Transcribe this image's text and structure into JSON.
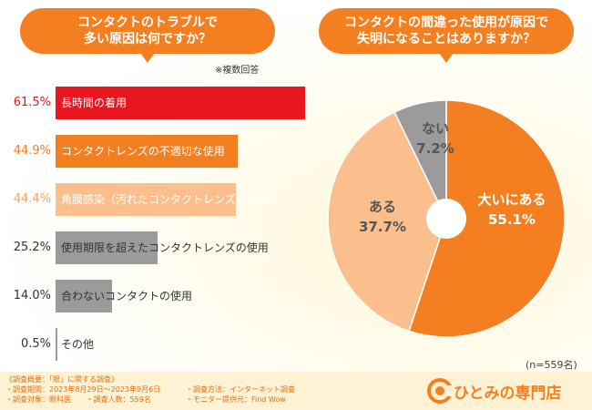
{
  "left_chart": {
    "question": "コンタクトのトラブルで\n多い原因は何ですか？",
    "note": "※複数回答",
    "chart_data": {
      "type": "bar",
      "categories": [
        "長時間の着用",
        "コンタクトレンズの不適切な使用",
        "角膜感染（汚れたコンタクトレンズの使用）",
        "使用期限を超えたコンタクトレンズの使用",
        "合わないコンタクトの使用",
        "その他"
      ],
      "values": [
        61.5,
        44.9,
        44.4,
        25.2,
        14.0,
        0.5
      ],
      "value_labels": [
        "61.5%",
        "44.9%",
        "44.4%",
        "25.2%",
        "14.0%",
        "0.5%"
      ],
      "colors": [
        "#e8161e",
        "#f47f20",
        "#fbbf8e",
        "#9b9b9b",
        "#9b9b9b",
        "#9b9b9b"
      ],
      "label_colors": [
        "#e8161e",
        "#f47f20",
        "#f7a460",
        "#333333",
        "#333333",
        "#333333"
      ],
      "xlim": [
        0,
        100
      ]
    }
  },
  "right_chart": {
    "question": "コンタクトの間違った使用が原因で\n失明になることはありますか？",
    "chart_data": {
      "type": "pie",
      "labels": [
        "大いにある",
        "ある",
        "ない"
      ],
      "values": [
        55.1,
        37.7,
        7.2
      ],
      "value_labels": [
        "55.1%",
        "37.7%",
        "7.2%"
      ],
      "colors": [
        "#f47f20",
        "#fbbf8e",
        "#9b9b9b"
      ]
    },
    "n_label": "(n=559名)"
  },
  "footer": {
    "line1": "《調査概要：「眼」に関する調査》",
    "line2": "・調査期間：2023年8月29日～2023年9月6日",
    "line3a": "・調査対象：眼科医",
    "line3b": "・調査人数：559名",
    "line4": "・調査方法：インターネット調査",
    "line5": "・モニター提供元：Find Wow",
    "logo_text": "ひとみの専門店"
  }
}
